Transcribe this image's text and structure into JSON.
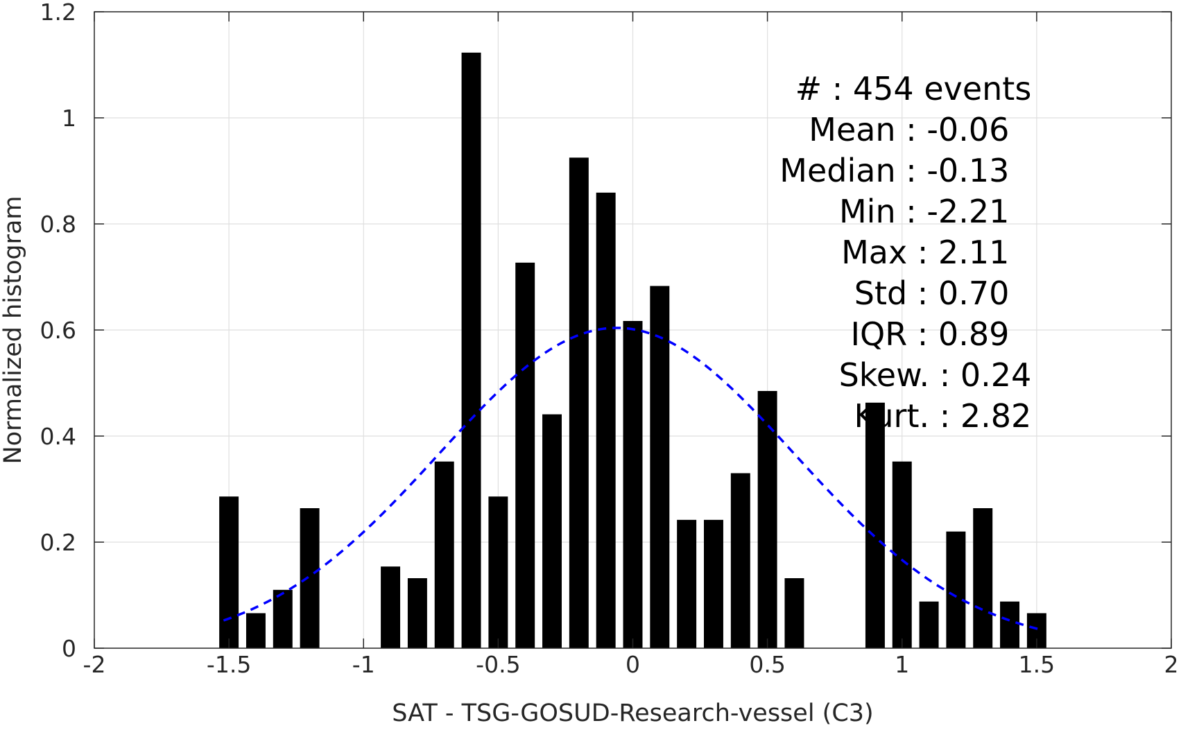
{
  "chart_data": {
    "type": "bar",
    "xlabel": "SAT - TSG-GOSUD-Research-vessel (C3)",
    "ylabel": "Normalized histogram",
    "xlim": [
      -2,
      2
    ],
    "ylim": [
      0,
      1.2
    ],
    "grid": true,
    "xticks": [
      "-2",
      "-1.5",
      "-1",
      "-0.5",
      "0",
      "0.5",
      "1",
      "1.5",
      "2"
    ],
    "yticks": [
      "0",
      "0.2",
      "0.4",
      "0.6",
      "0.8",
      "1",
      "1.2"
    ],
    "bar_color": "#000000",
    "bin_width": 0.1,
    "bins": [
      {
        "x": -1.5,
        "y": 0.286
      },
      {
        "x": -1.4,
        "y": 0.066
      },
      {
        "x": -1.3,
        "y": 0.11
      },
      {
        "x": -1.2,
        "y": 0.264
      },
      {
        "x": -0.9,
        "y": 0.154
      },
      {
        "x": -0.8,
        "y": 0.132
      },
      {
        "x": -0.7,
        "y": 0.352
      },
      {
        "x": -0.6,
        "y": 1.123
      },
      {
        "x": -0.5,
        "y": 0.286
      },
      {
        "x": -0.4,
        "y": 0.727
      },
      {
        "x": -0.3,
        "y": 0.441
      },
      {
        "x": -0.2,
        "y": 0.925
      },
      {
        "x": -0.1,
        "y": 0.859
      },
      {
        "x": 0.0,
        "y": 0.617
      },
      {
        "x": 0.1,
        "y": 0.683
      },
      {
        "x": 0.2,
        "y": 0.242
      },
      {
        "x": 0.3,
        "y": 0.242
      },
      {
        "x": 0.4,
        "y": 0.33
      },
      {
        "x": 0.5,
        "y": 0.485
      },
      {
        "x": 0.6,
        "y": 0.132
      },
      {
        "x": 0.9,
        "y": 0.463
      },
      {
        "x": 1.0,
        "y": 0.352
      },
      {
        "x": 1.1,
        "y": 0.088
      },
      {
        "x": 1.2,
        "y": 0.22
      },
      {
        "x": 1.3,
        "y": 0.264
      },
      {
        "x": 1.4,
        "y": 0.088
      },
      {
        "x": 1.5,
        "y": 0.066
      }
    ],
    "fit_curve": {
      "type": "normal",
      "style": "dashed",
      "color": "#0000ff",
      "mean": -0.06,
      "std": 0.66,
      "peak": 0.604,
      "x_range": [
        -1.52,
        1.52
      ]
    },
    "stats": [
      {
        "text": "#  : 454 events",
        "anchor_x": 0.63
      },
      {
        "text": "Mean : -0.06",
        "anchor_x": 0.595
      },
      {
        "text": "Median : -0.13",
        "anchor_x": 0.595
      },
      {
        "text": "Min : -2.21",
        "anchor_x": 0.595
      },
      {
        "text": "Max : 2.11",
        "anchor_x": 0.595
      },
      {
        "text": "Std : 0.70",
        "anchor_x": 0.595
      },
      {
        "text": "IQR : 0.89",
        "anchor_x": 0.595
      },
      {
        "text": "Skew. : 0.24",
        "anchor_x": 0.63
      },
      {
        "text": "Kurt. : 2.82",
        "anchor_x": 0.63
      }
    ]
  }
}
